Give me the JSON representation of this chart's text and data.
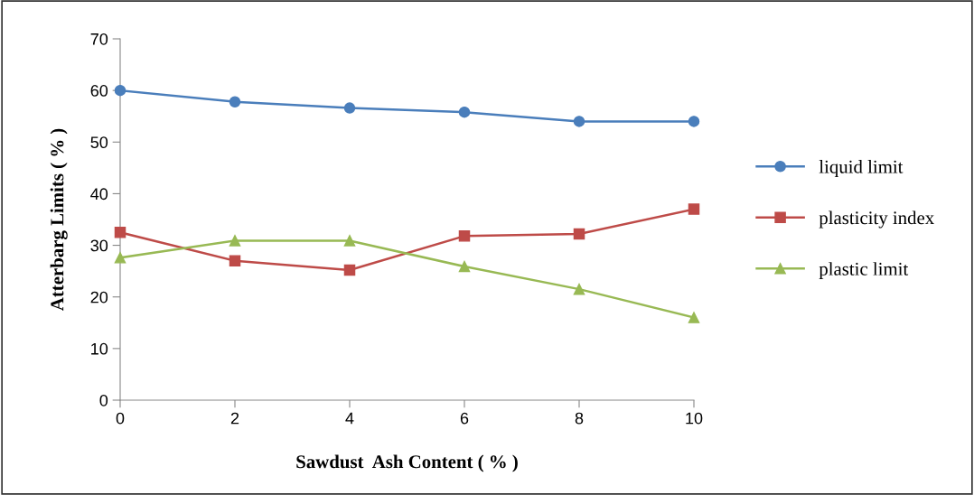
{
  "chart_data": {
    "type": "line",
    "xlabel": "Sawdust  Ash Content ( % )",
    "ylabel": "Atterbarg Limits ( % )",
    "x": [
      0,
      2,
      4,
      6,
      8,
      10
    ],
    "series": [
      {
        "name": "liquid limit",
        "color": "#4a7ebb",
        "marker": "circle",
        "values": [
          60,
          57.8,
          56.6,
          55.8,
          54,
          54
        ]
      },
      {
        "name": "plasticity index",
        "color": "#be4b48",
        "marker": "square",
        "values": [
          32.5,
          27,
          25.2,
          31.8,
          32.2,
          37
        ]
      },
      {
        "name": "plastic limit",
        "color": "#98b954",
        "marker": "triangle",
        "values": [
          27.6,
          30.9,
          30.9,
          25.9,
          21.5,
          16
        ]
      }
    ],
    "xlim": [
      0,
      10
    ],
    "xticks": [
      0,
      2,
      4,
      6,
      8,
      10
    ],
    "ylim": [
      0,
      70
    ],
    "yticks": [
      0,
      10,
      20,
      30,
      40,
      50,
      60,
      70
    ],
    "grid": false,
    "legend": "right",
    "line_style": "solid"
  }
}
